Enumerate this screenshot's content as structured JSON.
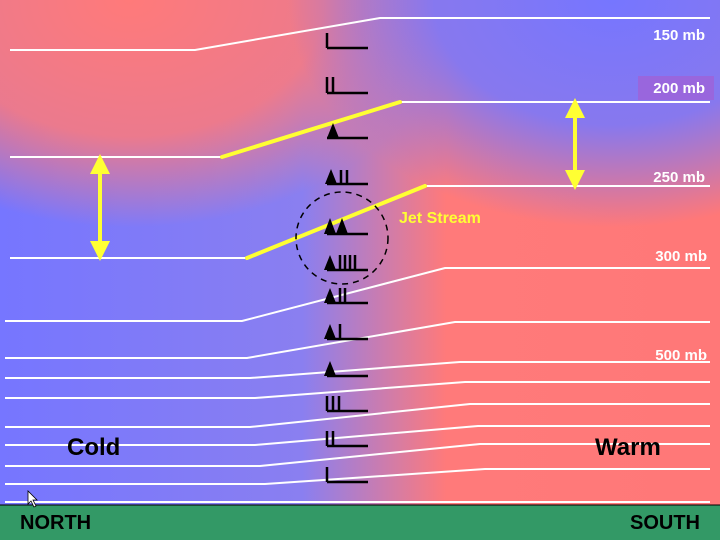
{
  "pressure_levels": {
    "p150": "150 mb",
    "p200": "200 mb",
    "p250": "250 mb",
    "p300": "300 mb",
    "p500": "500 mb"
  },
  "labels": {
    "cold": "Cold",
    "warm": "Warm",
    "jet_stream": "Jet Stream",
    "north": "NORTH",
    "south": "SOUTH"
  },
  "colors": {
    "cold": "#7878ff",
    "warm": "#ff7878",
    "ground": "#339966",
    "highlight": "#ffff33",
    "p200_box": "#9966dd"
  },
  "icons": {
    "wind_barbs": "wind-barb-icons",
    "cursor": "mouse-pointer-icon"
  }
}
